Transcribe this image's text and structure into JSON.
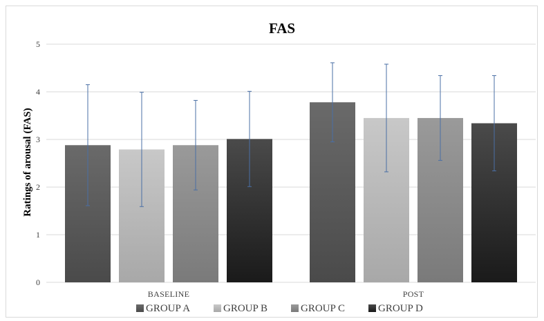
{
  "chart_data": {
    "type": "bar",
    "title": "FAS",
    "ylabel": "Ratings of arousal (FAS)",
    "xlabel": "",
    "ylim": [
      0,
      5
    ],
    "yticks": [
      0,
      1,
      2,
      3,
      4,
      5
    ],
    "categories": [
      "BASELINE",
      "POST"
    ],
    "grid": true,
    "legend_position": "bottom",
    "series": [
      {
        "name": "GROUP A",
        "values": [
          2.88,
          3.78
        ],
        "errors": [
          1.27,
          0.83
        ],
        "color_top": "#6a6a6a",
        "color_bottom": "#4a4a4a"
      },
      {
        "name": "GROUP B",
        "values": [
          2.79,
          3.45
        ],
        "errors": [
          1.2,
          1.13
        ],
        "color_top": "#c8c8c8",
        "color_bottom": "#a8a8a8"
      },
      {
        "name": "GROUP C",
        "values": [
          2.88,
          3.45
        ],
        "errors": [
          0.94,
          0.89
        ],
        "color_top": "#9a9a9a",
        "color_bottom": "#7a7a7a"
      },
      {
        "name": "GROUP D",
        "values": [
          3.01,
          3.34
        ],
        "errors": [
          1.0,
          1.0
        ],
        "color_top": "#4a4a4a",
        "color_bottom": "#1a1a1a"
      }
    ],
    "error_bar_color": "#4a6fa5"
  }
}
